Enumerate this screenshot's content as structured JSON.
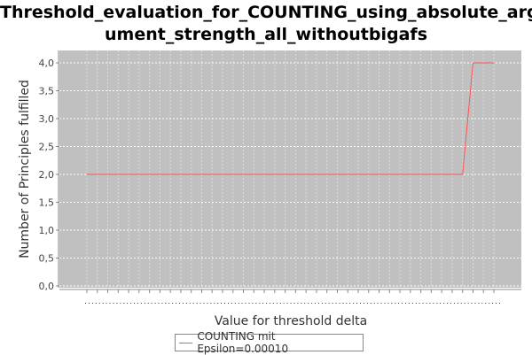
{
  "chart_data": {
    "type": "line",
    "title_lines": [
      "Threshold_evaluation_for_COUNTING_using_absolute_arg",
      "ument_strength_all_withoutbigafs"
    ],
    "xlabel": "Value for threshold delta",
    "ylabel": "Number of Principles fulfilled",
    "ylim": [
      0.0,
      4.0
    ],
    "yticks": [
      "0,0",
      "0,5",
      "1,0",
      "1,5",
      "2,0",
      "2,5",
      "3,0",
      "3,5",
      "4,0"
    ],
    "x_count": 40,
    "grid": true,
    "legend_position": "bottom",
    "series": [
      {
        "name": "COUNTING mit Epsilon=0.00010",
        "color": "#ff5555",
        "values": [
          2,
          2,
          2,
          2,
          2,
          2,
          2,
          2,
          2,
          2,
          2,
          2,
          2,
          2,
          2,
          2,
          2,
          2,
          2,
          2,
          2,
          2,
          2,
          2,
          2,
          2,
          2,
          2,
          2,
          2,
          2,
          2,
          2,
          2,
          2,
          2,
          2,
          4,
          4,
          4
        ]
      }
    ]
  }
}
